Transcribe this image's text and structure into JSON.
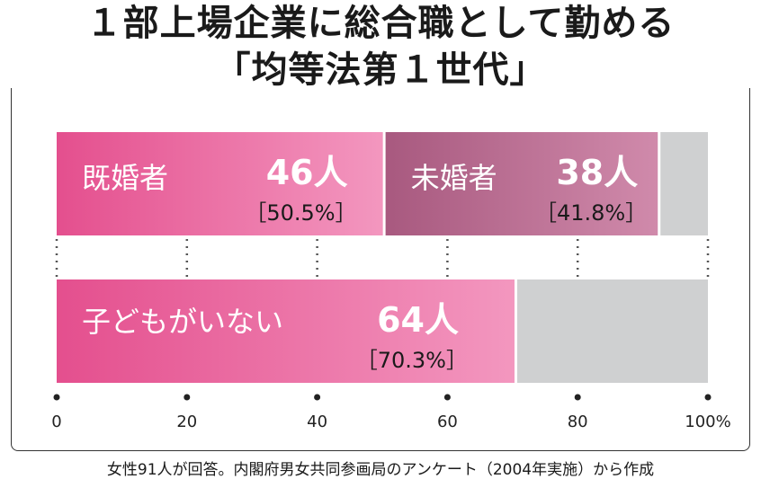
{
  "title_line1": "１部上場企業に総合職として勤める",
  "title_line2": "「均等法第１世代」",
  "source": "女性91人が回答。内閣府男女共同参画局のアンケート（2004年実施）から作成",
  "colors": {
    "married": "#e9609a",
    "unmarried": "#b06688",
    "childless": "#e9609a",
    "remainder": "#cfd0d1"
  },
  "chart_data": {
    "type": "bar",
    "orientation": "horizontal",
    "stacked": true,
    "xlim": [
      0,
      100
    ],
    "x_ticks": [
      "0",
      "20",
      "40",
      "60",
      "80",
      "100%"
    ],
    "x_tick_values": [
      0,
      20,
      40,
      60,
      80,
      100
    ],
    "bars": [
      {
        "segments": [
          {
            "label": "既婚者",
            "count": "46人",
            "pct": "［50.5%］",
            "value": 50.5
          },
          {
            "label": "未婚者",
            "count": "38人",
            "pct": "［41.8%］",
            "value": 41.8
          }
        ]
      },
      {
        "segments": [
          {
            "label": "子どもがいない",
            "count": "64人",
            "pct": "［70.3%］",
            "value": 70.3
          }
        ]
      }
    ]
  }
}
